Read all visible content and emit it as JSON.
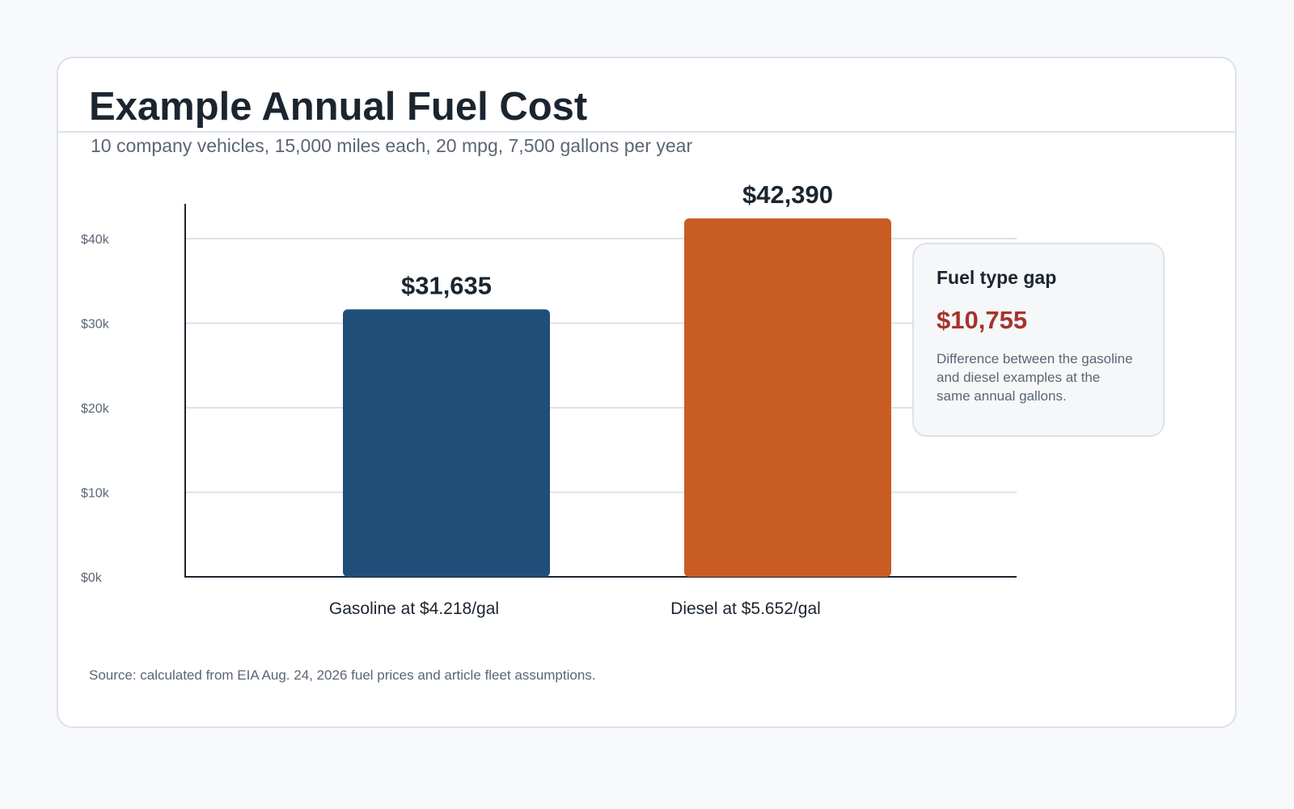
{
  "header": {
    "title": "Example Annual Fuel Cost",
    "subtitle": "10 company vehicles, 15,000 miles each, 20 mpg, 7,500 gallons per year"
  },
  "chart_data": {
    "type": "bar",
    "title": "Example Annual Fuel Cost",
    "subtitle": "10 company vehicles, 15,000 miles each, 20 mpg, 7,500 gallons per year",
    "categories": [
      "Gasoline at $4.218/gal",
      "Diesel at $5.652/gal"
    ],
    "values": [
      31635,
      42390
    ],
    "value_labels": [
      "$31,635",
      "$42,390"
    ],
    "y_ticks": [
      0,
      10000,
      20000,
      30000,
      40000
    ],
    "y_tick_labels": [
      "$0k",
      "$10k",
      "$20k",
      "$30k",
      "$40k"
    ],
    "ylim": [
      0,
      45000
    ],
    "xlabel": "",
    "ylabel": "",
    "grid": true,
    "bar_colors": [
      "#1f4e79",
      "#c95c23"
    ]
  },
  "callout": {
    "title": "Fuel type gap",
    "value": "$10,755",
    "text": "Difference between the gasoline and diesel examples at the same annual gallons."
  },
  "footer": {
    "source": "Source: calculated from EIA Aug. 24, 2026 fuel prices and article fleet assumptions."
  },
  "colors": {
    "gap_value": "#a8322d",
    "axis": "#1b2530",
    "grid": "#dde2e8"
  }
}
